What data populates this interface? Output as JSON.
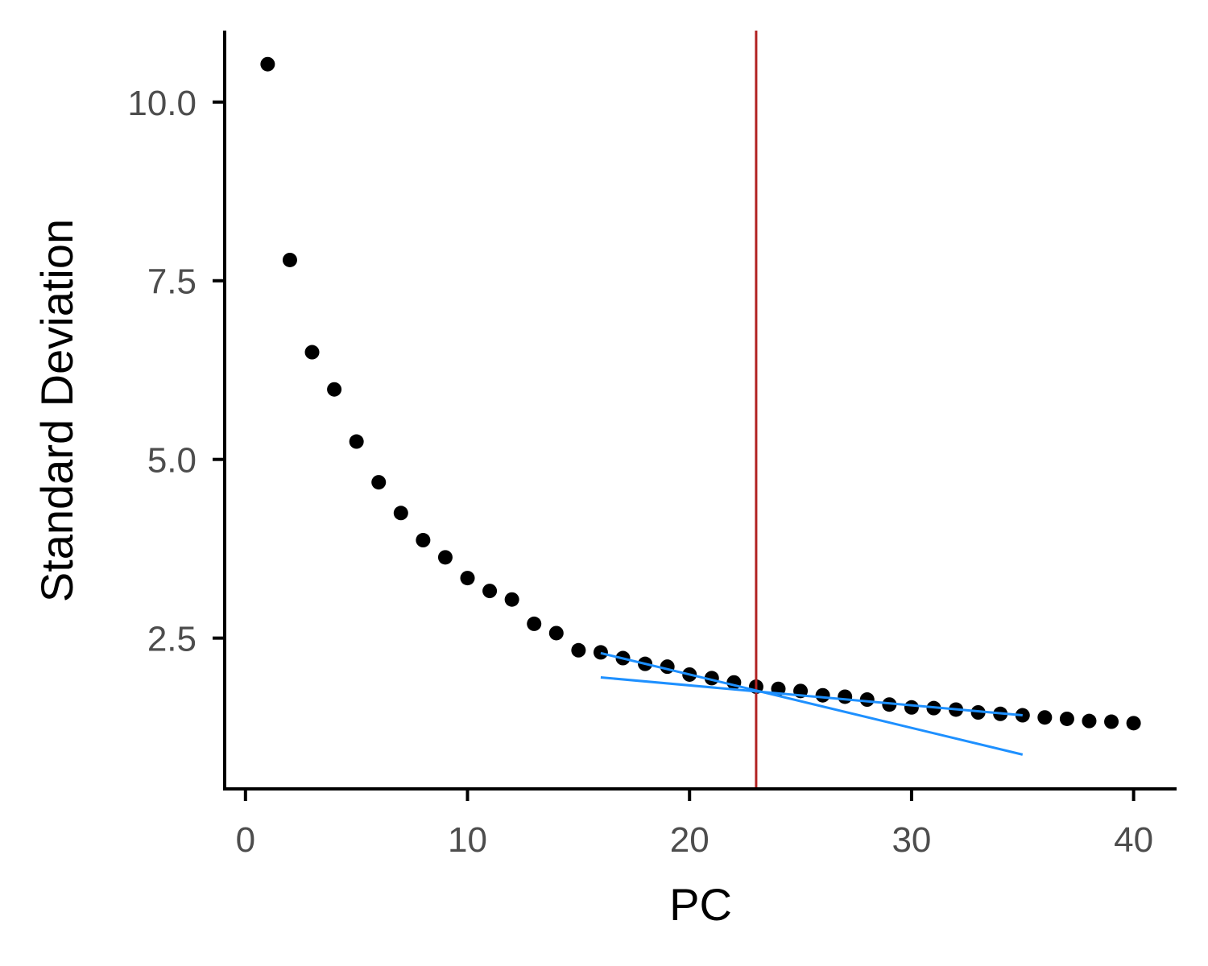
{
  "chart_data": {
    "type": "scatter",
    "xlabel": "PC",
    "ylabel": "Standard Deviation",
    "xlim": [
      -0.9,
      41.9
    ],
    "ylim": [
      0.39,
      11.0
    ],
    "xticks": [
      "0",
      "10",
      "20",
      "30",
      "40"
    ],
    "yticks": [
      "2.5",
      "5.0",
      "7.5",
      "10.0"
    ],
    "grid": false,
    "x": [
      1,
      2,
      3,
      4,
      5,
      6,
      7,
      8,
      9,
      10,
      11,
      12,
      13,
      14,
      15,
      16,
      17,
      18,
      19,
      20,
      21,
      22,
      23,
      24,
      25,
      26,
      27,
      28,
      29,
      30,
      31,
      32,
      33,
      34,
      35,
      36,
      37,
      38,
      39,
      40
    ],
    "y": [
      10.53,
      7.79,
      6.5,
      5.98,
      5.25,
      4.68,
      4.25,
      3.87,
      3.63,
      3.34,
      3.16,
      3.04,
      2.7,
      2.57,
      2.33,
      2.3,
      2.22,
      2.14,
      2.1,
      1.99,
      1.94,
      1.88,
      1.82,
      1.79,
      1.76,
      1.7,
      1.68,
      1.64,
      1.57,
      1.53,
      1.52,
      1.5,
      1.46,
      1.44,
      1.42,
      1.39,
      1.37,
      1.34,
      1.33,
      1.31
    ],
    "point_color": "#000000",
    "vline": {
      "x": 23,
      "color": "#B22222"
    },
    "fit_lines": [
      {
        "x": [
          16,
          35
        ],
        "y": [
          2.29,
          0.87
        ],
        "color": "#1E90FF"
      },
      {
        "x": [
          16,
          35
        ],
        "y": [
          1.95,
          1.42
        ],
        "color": "#1E90FF"
      }
    ]
  }
}
